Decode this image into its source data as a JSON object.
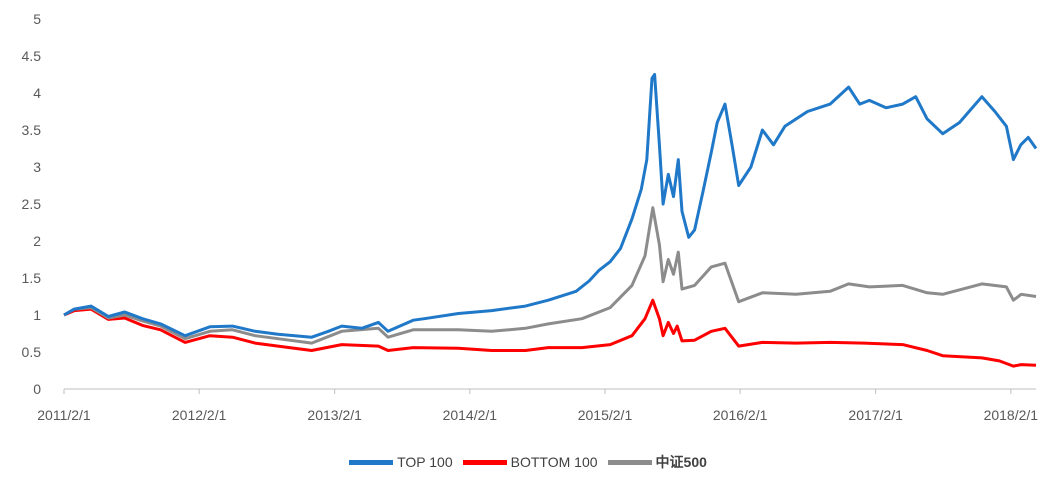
{
  "chart_data": {
    "type": "line",
    "title": "",
    "xlabel": "",
    "ylabel": "",
    "ylim": [
      0,
      5
    ],
    "y_ticks": [
      "0",
      "0.5",
      "1",
      "1.5",
      "2",
      "2.5",
      "3",
      "3.5",
      "4",
      "4.5",
      "5"
    ],
    "x_ticks": [
      "2011/2/1",
      "2012/2/1",
      "2013/2/1",
      "2014/2/1",
      "2015/2/1",
      "2016/2/1",
      "2017/2/1",
      "2018/2/1"
    ],
    "xlim": [
      "2011-02-01",
      "2018-04-10"
    ],
    "grid": false,
    "legend_position": "bottom",
    "series": [
      {
        "name": "TOP 100",
        "color": "#1F78C8",
        "points": [
          [
            "2011-02-01",
            1.0
          ],
          [
            "2011-03-01",
            1.08
          ],
          [
            "2011-04-15",
            1.12
          ],
          [
            "2011-06-01",
            0.98
          ],
          [
            "2011-07-15",
            1.04
          ],
          [
            "2011-09-01",
            0.95
          ],
          [
            "2011-10-20",
            0.88
          ],
          [
            "2011-12-25",
            0.72
          ],
          [
            "2012-03-01",
            0.84
          ],
          [
            "2012-05-01",
            0.85
          ],
          [
            "2012-07-01",
            0.78
          ],
          [
            "2012-09-01",
            0.74
          ],
          [
            "2012-12-01",
            0.7
          ],
          [
            "2013-01-15",
            0.78
          ],
          [
            "2013-02-20",
            0.85
          ],
          [
            "2013-04-15",
            0.82
          ],
          [
            "2013-05-30",
            0.9
          ],
          [
            "2013-06-25",
            0.78
          ],
          [
            "2013-09-01",
            0.93
          ],
          [
            "2013-10-01",
            0.95
          ],
          [
            "2014-01-01",
            1.02
          ],
          [
            "2014-04-01",
            1.06
          ],
          [
            "2014-07-01",
            1.12
          ],
          [
            "2014-09-01",
            1.2
          ],
          [
            "2014-11-15",
            1.32
          ],
          [
            "2014-12-20",
            1.46
          ],
          [
            "2015-01-15",
            1.6
          ],
          [
            "2015-02-15",
            1.72
          ],
          [
            "2015-03-15",
            1.9
          ],
          [
            "2015-04-15",
            2.3
          ],
          [
            "2015-05-10",
            2.7
          ],
          [
            "2015-05-25",
            3.1
          ],
          [
            "2015-06-08",
            4.2
          ],
          [
            "2015-06-15",
            4.25
          ],
          [
            "2015-06-28",
            3.3
          ],
          [
            "2015-07-08",
            2.5
          ],
          [
            "2015-07-22",
            2.9
          ],
          [
            "2015-08-05",
            2.6
          ],
          [
            "2015-08-18",
            3.1
          ],
          [
            "2015-08-28",
            2.4
          ],
          [
            "2015-09-15",
            2.05
          ],
          [
            "2015-10-01",
            2.15
          ],
          [
            "2015-10-25",
            2.7
          ],
          [
            "2015-11-15",
            3.2
          ],
          [
            "2015-12-01",
            3.6
          ],
          [
            "2015-12-22",
            3.85
          ],
          [
            "2016-01-10",
            3.3
          ],
          [
            "2016-01-28",
            2.75
          ],
          [
            "2016-03-01",
            3.0
          ],
          [
            "2016-04-01",
            3.5
          ],
          [
            "2016-05-01",
            3.3
          ],
          [
            "2016-06-01",
            3.55
          ],
          [
            "2016-08-01",
            3.75
          ],
          [
            "2016-10-01",
            3.85
          ],
          [
            "2016-11-20",
            4.08
          ],
          [
            "2016-12-20",
            3.85
          ],
          [
            "2017-01-15",
            3.9
          ],
          [
            "2017-03-01",
            3.8
          ],
          [
            "2017-04-15",
            3.85
          ],
          [
            "2017-05-20",
            3.95
          ],
          [
            "2017-06-20",
            3.65
          ],
          [
            "2017-08-01",
            3.45
          ],
          [
            "2017-09-15",
            3.6
          ],
          [
            "2017-11-15",
            3.95
          ],
          [
            "2017-12-20",
            3.75
          ],
          [
            "2018-01-20",
            3.55
          ],
          [
            "2018-02-08",
            3.1
          ],
          [
            "2018-02-28",
            3.3
          ],
          [
            "2018-03-20",
            3.4
          ],
          [
            "2018-04-10",
            3.25
          ]
        ]
      },
      {
        "name": "BOTTOM 100",
        "color": "#FF0000",
        "points": [
          [
            "2011-02-01",
            1.0
          ],
          [
            "2011-03-01",
            1.06
          ],
          [
            "2011-04-15",
            1.08
          ],
          [
            "2011-06-01",
            0.94
          ],
          [
            "2011-07-15",
            0.96
          ],
          [
            "2011-09-01",
            0.86
          ],
          [
            "2011-10-20",
            0.8
          ],
          [
            "2011-12-25",
            0.63
          ],
          [
            "2012-03-01",
            0.72
          ],
          [
            "2012-05-01",
            0.7
          ],
          [
            "2012-07-01",
            0.62
          ],
          [
            "2012-09-01",
            0.58
          ],
          [
            "2012-12-01",
            0.52
          ],
          [
            "2013-02-20",
            0.6
          ],
          [
            "2013-05-30",
            0.58
          ],
          [
            "2013-06-25",
            0.52
          ],
          [
            "2013-09-01",
            0.56
          ],
          [
            "2014-01-01",
            0.55
          ],
          [
            "2014-04-01",
            0.52
          ],
          [
            "2014-07-01",
            0.52
          ],
          [
            "2014-09-01",
            0.56
          ],
          [
            "2014-12-01",
            0.56
          ],
          [
            "2015-02-15",
            0.6
          ],
          [
            "2015-04-15",
            0.72
          ],
          [
            "2015-05-20",
            0.95
          ],
          [
            "2015-06-10",
            1.2
          ],
          [
            "2015-06-28",
            0.95
          ],
          [
            "2015-07-08",
            0.72
          ],
          [
            "2015-07-22",
            0.9
          ],
          [
            "2015-08-05",
            0.75
          ],
          [
            "2015-08-15",
            0.85
          ],
          [
            "2015-08-28",
            0.65
          ],
          [
            "2015-10-01",
            0.66
          ],
          [
            "2015-11-15",
            0.78
          ],
          [
            "2015-12-22",
            0.82
          ],
          [
            "2016-01-28",
            0.58
          ],
          [
            "2016-04-01",
            0.63
          ],
          [
            "2016-07-01",
            0.62
          ],
          [
            "2016-10-01",
            0.63
          ],
          [
            "2017-01-01",
            0.62
          ],
          [
            "2017-04-15",
            0.6
          ],
          [
            "2017-06-20",
            0.52
          ],
          [
            "2017-08-01",
            0.45
          ],
          [
            "2017-11-15",
            0.42
          ],
          [
            "2018-01-01",
            0.38
          ],
          [
            "2018-02-08",
            0.31
          ],
          [
            "2018-03-01",
            0.33
          ],
          [
            "2018-04-10",
            0.32
          ]
        ]
      },
      {
        "name": "中证500",
        "color": "#8C8C8C",
        "points": [
          [
            "2011-02-01",
            1.0
          ],
          [
            "2011-03-01",
            1.08
          ],
          [
            "2011-04-15",
            1.1
          ],
          [
            "2011-06-01",
            0.96
          ],
          [
            "2011-07-15",
            1.0
          ],
          [
            "2011-09-01",
            0.92
          ],
          [
            "2011-10-20",
            0.85
          ],
          [
            "2011-12-25",
            0.68
          ],
          [
            "2012-03-01",
            0.78
          ],
          [
            "2012-05-01",
            0.8
          ],
          [
            "2012-07-01",
            0.72
          ],
          [
            "2012-09-01",
            0.68
          ],
          [
            "2012-12-01",
            0.62
          ],
          [
            "2013-02-20",
            0.78
          ],
          [
            "2013-05-30",
            0.82
          ],
          [
            "2013-06-25",
            0.7
          ],
          [
            "2013-09-01",
            0.8
          ],
          [
            "2014-01-01",
            0.8
          ],
          [
            "2014-04-01",
            0.78
          ],
          [
            "2014-07-01",
            0.82
          ],
          [
            "2014-09-01",
            0.88
          ],
          [
            "2014-12-01",
            0.95
          ],
          [
            "2015-02-15",
            1.1
          ],
          [
            "2015-04-15",
            1.4
          ],
          [
            "2015-05-20",
            1.8
          ],
          [
            "2015-06-10",
            2.45
          ],
          [
            "2015-06-28",
            1.95
          ],
          [
            "2015-07-08",
            1.45
          ],
          [
            "2015-07-22",
            1.75
          ],
          [
            "2015-08-05",
            1.55
          ],
          [
            "2015-08-18",
            1.85
          ],
          [
            "2015-08-28",
            1.35
          ],
          [
            "2015-10-01",
            1.4
          ],
          [
            "2015-11-15",
            1.65
          ],
          [
            "2015-12-22",
            1.7
          ],
          [
            "2016-01-28",
            1.18
          ],
          [
            "2016-04-01",
            1.3
          ],
          [
            "2016-07-01",
            1.28
          ],
          [
            "2016-10-01",
            1.32
          ],
          [
            "2016-11-20",
            1.42
          ],
          [
            "2017-01-15",
            1.38
          ],
          [
            "2017-04-15",
            1.4
          ],
          [
            "2017-06-20",
            1.3
          ],
          [
            "2017-08-01",
            1.28
          ],
          [
            "2017-11-15",
            1.42
          ],
          [
            "2018-01-20",
            1.38
          ],
          [
            "2018-02-08",
            1.2
          ],
          [
            "2018-03-01",
            1.28
          ],
          [
            "2018-04-10",
            1.25
          ]
        ]
      }
    ]
  }
}
